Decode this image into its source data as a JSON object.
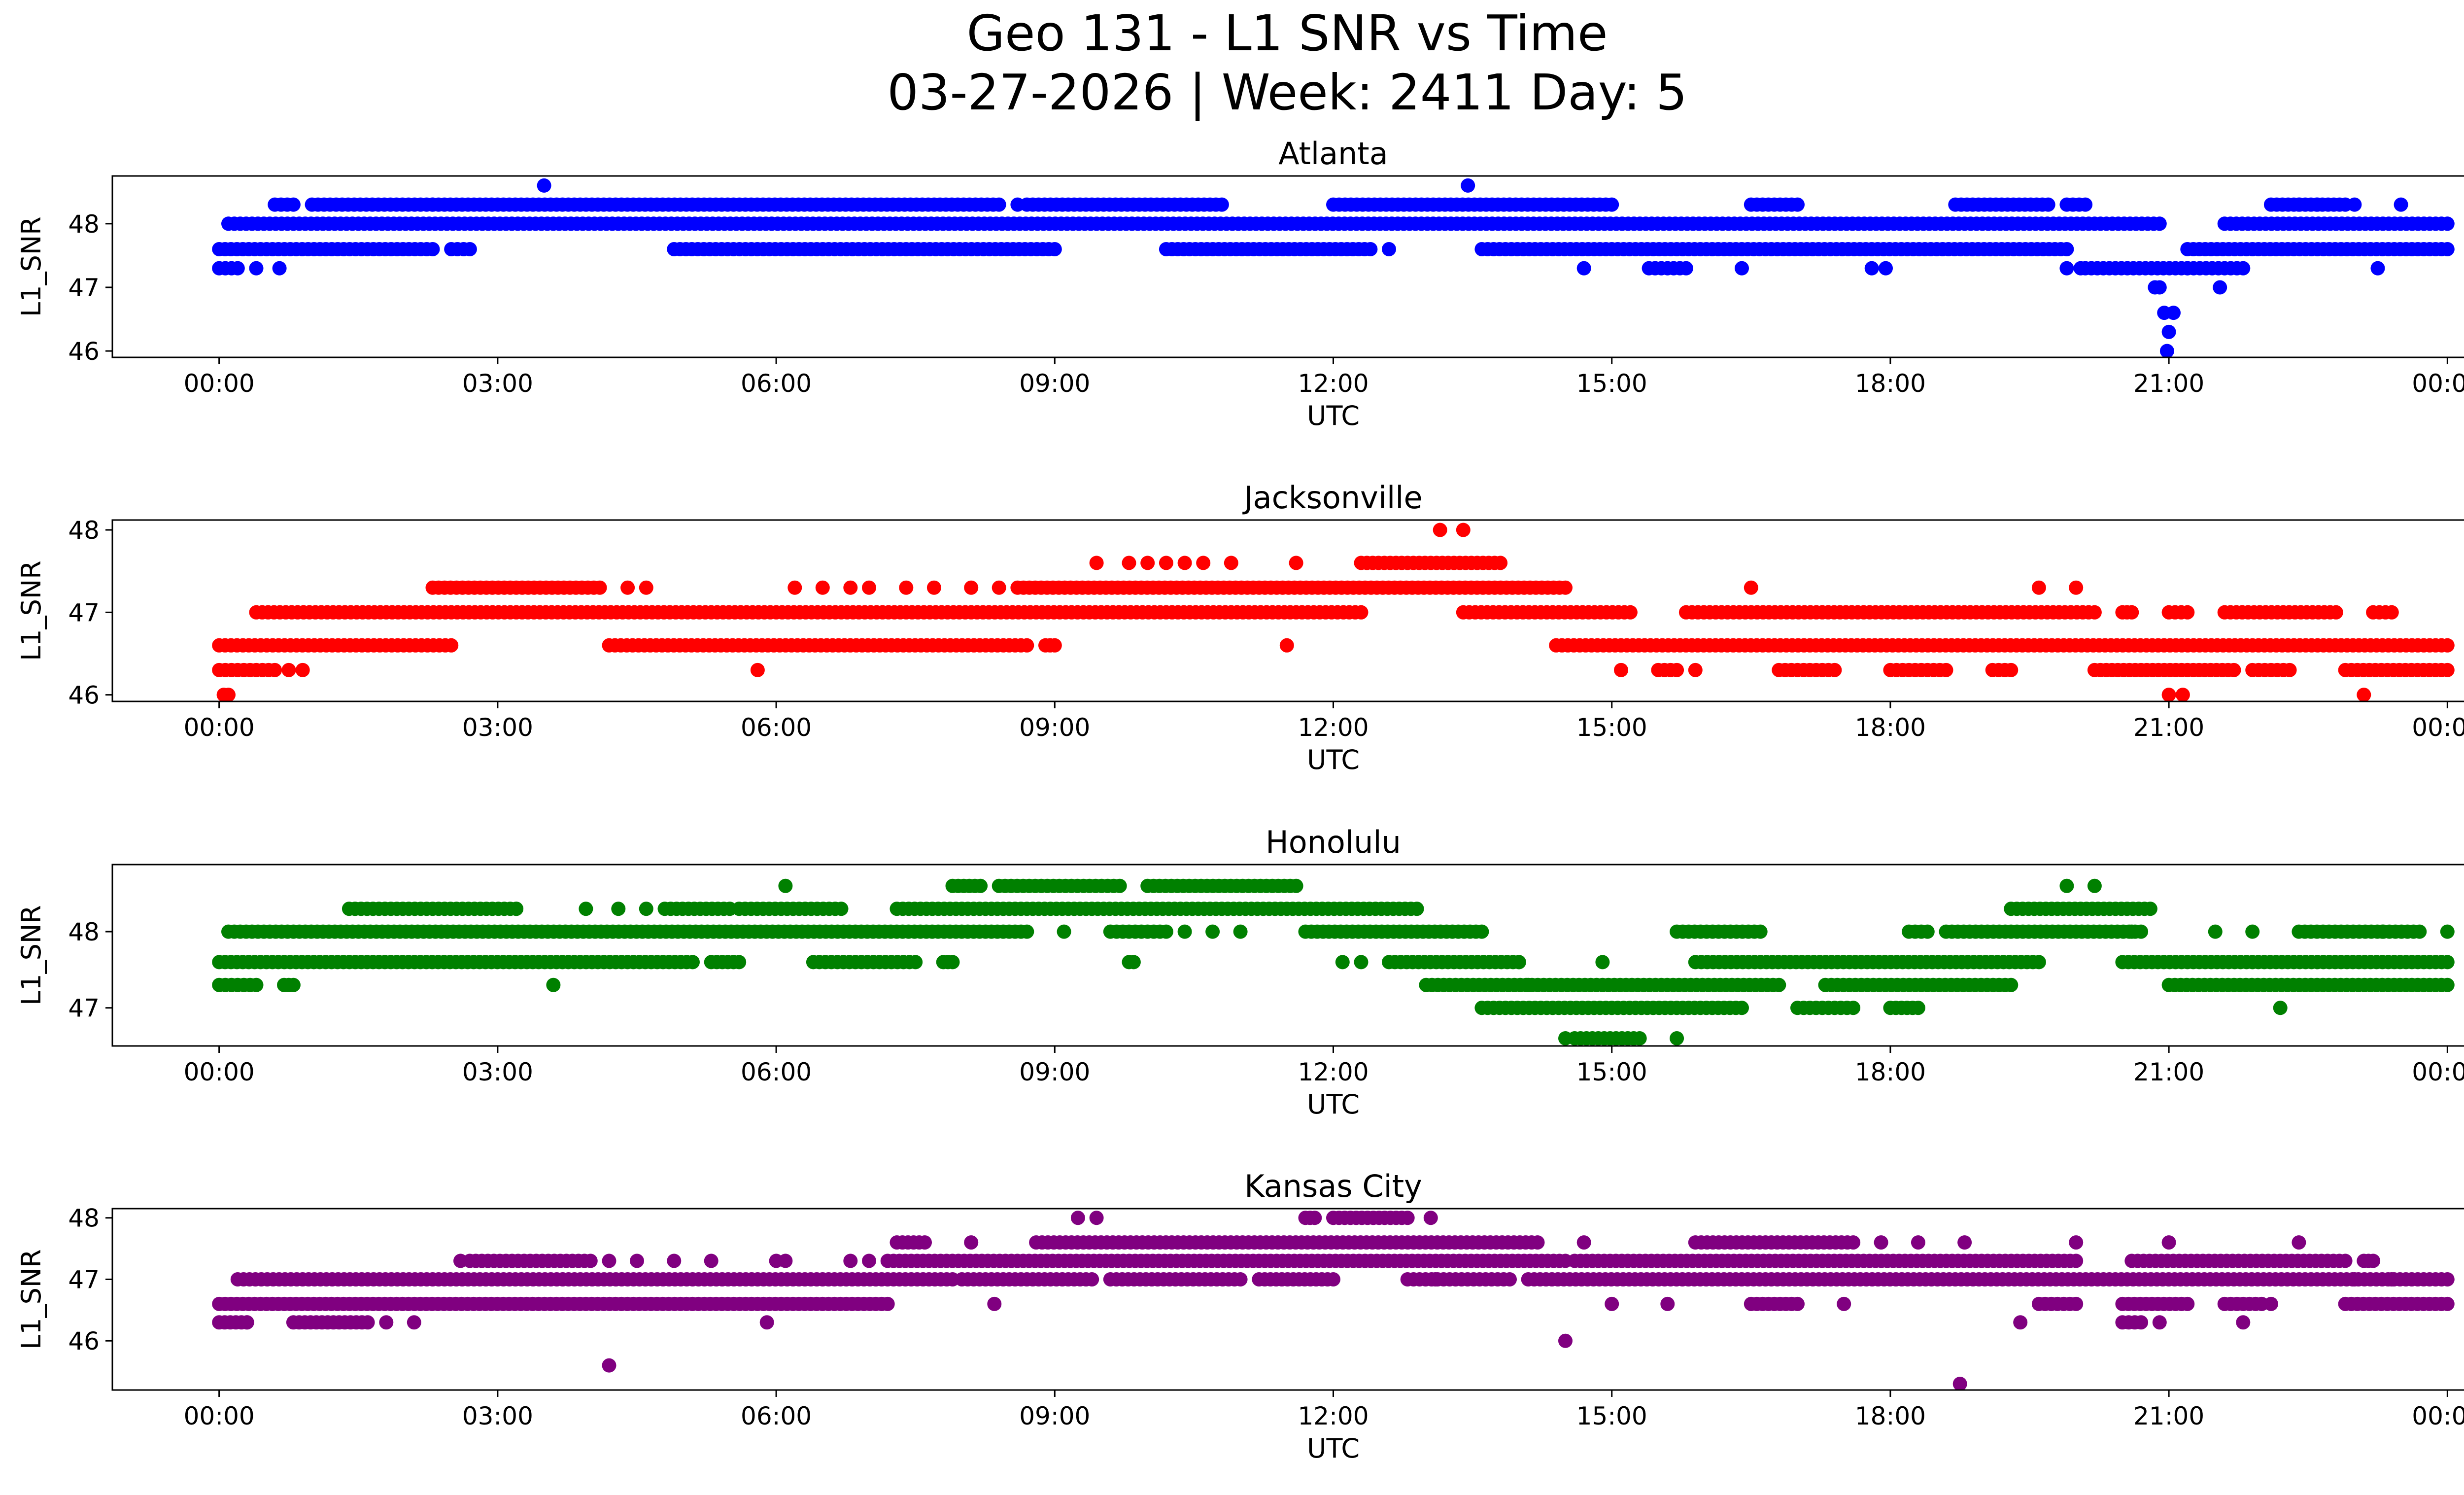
{
  "chart_data": {
    "type": "scatter",
    "title": "Geo 131 - L1 SNR vs Time",
    "subtitle": "03-27-2026 | Week: 2411 Day: 5",
    "xlabel": "UTC",
    "ylabel": "L1_SNR",
    "x_tick_labels": [
      "00:00",
      "03:00",
      "06:00",
      "09:00",
      "12:00",
      "15:00",
      "18:00",
      "21:00",
      "00:00"
    ],
    "x_ticks_hours": [
      0,
      3,
      6,
      9,
      12,
      15,
      18,
      21,
      24
    ],
    "xlim_hours": [
      -1.15,
      25.15
    ],
    "subplots": [
      {
        "name": "Atlanta",
        "color": "#0000ff",
        "ylim": [
          45.9,
          48.75
        ],
        "yticks": [
          46,
          47,
          48
        ],
        "levels": [
          {
            "y": 47.6,
            "segments": [
              [
                0,
                2.3
              ],
              [
                2.5,
                2.7
              ],
              [
                4.9,
                9.0
              ],
              [
                10.2,
                12.4
              ],
              [
                13.6,
                19.9
              ],
              [
                21.2,
                24
              ]
            ]
          },
          {
            "y": 48.0,
            "segments": [
              [
                0.1,
                20.9
              ],
              [
                21.6,
                24
              ]
            ]
          },
          {
            "y": 48.3,
            "segments": [
              [
                0.6,
                0.8
              ],
              [
                1.0,
                2.3
              ],
              [
                2.3,
                8.4
              ],
              [
                8.7,
                10.8
              ],
              [
                12.0,
                13.9
              ],
              [
                13.9,
                15.0
              ],
              [
                16.5,
                17.0
              ],
              [
                18.7,
                19.7
              ],
              [
                19.9,
                20.1
              ],
              [
                22.1,
                22.9
              ]
            ]
          },
          {
            "y": 47.3,
            "segments": [
              [
                0,
                0.2
              ],
              [
                15.4,
                15.8
              ],
              [
                20.1,
                21.2
              ],
              [
                21.2,
                21.8
              ]
            ]
          }
        ],
        "points": [
          [
            0.4,
            47.3
          ],
          [
            0.65,
            47.3
          ],
          [
            3.5,
            48.6
          ],
          [
            8.6,
            48.3
          ],
          [
            12.6,
            47.6
          ],
          [
            13.45,
            48.6
          ],
          [
            14.7,
            47.3
          ],
          [
            16.4,
            47.3
          ],
          [
            17.8,
            47.3
          ],
          [
            17.95,
            47.3
          ],
          [
            19.9,
            47.3
          ],
          [
            20.05,
            47.3
          ],
          [
            21.55,
            47.0
          ],
          [
            22.4,
            48.3
          ],
          [
            22.6,
            48.3
          ],
          [
            23.0,
            48.3
          ],
          [
            23.25,
            47.3
          ],
          [
            23.5,
            48.3
          ],
          [
            20.9,
            47.0
          ],
          [
            20.95,
            46.6
          ],
          [
            21.0,
            46.3
          ],
          [
            20.98,
            46.0
          ],
          [
            21.05,
            46.6
          ],
          [
            20.85,
            47.0
          ]
        ]
      },
      {
        "name": "Jacksonville",
        "color": "#ff0000",
        "ylim": [
          45.92,
          48.12
        ],
        "yticks": [
          46,
          47,
          48
        ],
        "levels": [
          {
            "y": 46.3,
            "segments": [
              [
                0,
                0.6
              ],
              [
                15.5,
                15.7
              ],
              [
                16.8,
                17.4
              ],
              [
                18.0,
                18.6
              ],
              [
                19.1,
                19.3
              ],
              [
                20.2,
                21.7
              ],
              [
                21.9,
                22.3
              ],
              [
                22.9,
                24
              ]
            ]
          },
          {
            "y": 46.6,
            "segments": [
              [
                0,
                2.5
              ],
              [
                4.2,
                8.7
              ],
              [
                8.9,
                9.0
              ],
              [
                14.4,
                24
              ]
            ]
          },
          {
            "y": 47.0,
            "segments": [
              [
                0.4,
                12.3
              ],
              [
                13.4,
                15.2
              ],
              [
                15.8,
                20.2
              ],
              [
                20.5,
                20.6
              ],
              [
                21.0,
                21.2
              ],
              [
                21.6,
                22.8
              ],
              [
                23.2,
                23.4
              ]
            ]
          },
          {
            "y": 47.3,
            "segments": [
              [
                2.3,
                4.1
              ],
              [
                8.6,
                14.5
              ]
            ]
          },
          {
            "y": 47.6,
            "segments": [
              [
                12.3,
                13.8
              ]
            ]
          }
        ],
        "points": [
          [
            0.05,
            46.0
          ],
          [
            0.1,
            46.0
          ],
          [
            0.75,
            46.3
          ],
          [
            0.9,
            46.3
          ],
          [
            4.4,
            47.3
          ],
          [
            4.6,
            47.3
          ],
          [
            5.8,
            46.3
          ],
          [
            6.2,
            47.3
          ],
          [
            6.5,
            47.3
          ],
          [
            6.8,
            47.3
          ],
          [
            7.0,
            47.3
          ],
          [
            7.4,
            47.3
          ],
          [
            7.7,
            47.3
          ],
          [
            8.1,
            47.3
          ],
          [
            8.4,
            47.3
          ],
          [
            9.45,
            47.6
          ],
          [
            9.8,
            47.6
          ],
          [
            10.0,
            47.6
          ],
          [
            10.2,
            47.6
          ],
          [
            10.4,
            47.6
          ],
          [
            10.6,
            47.6
          ],
          [
            10.9,
            47.6
          ],
          [
            11.5,
            46.6
          ],
          [
            11.6,
            47.6
          ],
          [
            13.15,
            48.0
          ],
          [
            13.4,
            48.0
          ],
          [
            15.1,
            46.3
          ],
          [
            15.9,
            46.3
          ],
          [
            16.5,
            47.3
          ],
          [
            19.6,
            47.3
          ],
          [
            20.0,
            47.3
          ],
          [
            21.0,
            46.0
          ],
          [
            21.15,
            46.0
          ],
          [
            23.1,
            46.0
          ]
        ]
      },
      {
        "name": "Honolulu",
        "color": "#008000",
        "ylim": [
          46.5,
          48.88
        ],
        "yticks": [
          47,
          48
        ],
        "levels": [
          {
            "y": 47.3,
            "segments": [
              [
                0,
                0.4
              ],
              [
                0.7,
                0.8
              ],
              [
                13.0,
                16.8
              ],
              [
                17.3,
                19.3
              ],
              [
                21.0,
                24
              ]
            ]
          },
          {
            "y": 47.6,
            "segments": [
              [
                0,
                5.1
              ],
              [
                5.3,
                5.6
              ],
              [
                6.4,
                7.5
              ],
              [
                7.8,
                7.9
              ],
              [
                12.6,
                14.0
              ],
              [
                15.9,
                19.6
              ],
              [
                20.5,
                24
              ]
            ]
          },
          {
            "y": 48.0,
            "segments": [
              [
                0.1,
                8.7
              ],
              [
                9.6,
                10.2
              ],
              [
                11.7,
                13.6
              ],
              [
                15.7,
                16.6
              ],
              [
                18.2,
                18.4
              ],
              [
                18.6,
                20.7
              ],
              [
                22.4,
                23.7
              ]
            ]
          },
          {
            "y": 48.3,
            "segments": [
              [
                1.4,
                3.2
              ],
              [
                4.8,
                5.5
              ],
              [
                5.6,
                6.7
              ],
              [
                7.3,
                12.9
              ],
              [
                19.3,
                20.8
              ]
            ]
          },
          {
            "y": 48.6,
            "segments": [
              [
                7.9,
                8.2
              ],
              [
                8.4,
                9.7
              ],
              [
                10.0,
                11.6
              ]
            ]
          },
          {
            "y": 47.0,
            "segments": [
              [
                13.6,
                16.4
              ],
              [
                17.0,
                17.6
              ],
              [
                18.0,
                18.3
              ]
            ]
          },
          {
            "y": 46.6,
            "segments": [
              [
                14.6,
                15.3
              ]
            ]
          }
        ],
        "points": [
          [
            3.2,
            48.3
          ],
          [
            3.6,
            47.3
          ],
          [
            3.95,
            48.3
          ],
          [
            4.3,
            48.3
          ],
          [
            4.6,
            48.3
          ],
          [
            6.1,
            48.6
          ],
          [
            9.1,
            48.0
          ],
          [
            9.8,
            47.6
          ],
          [
            9.85,
            47.6
          ],
          [
            10.4,
            48.0
          ],
          [
            10.7,
            48.0
          ],
          [
            11.0,
            48.0
          ],
          [
            12.1,
            47.6
          ],
          [
            12.3,
            47.6
          ],
          [
            14.0,
            47.6
          ],
          [
            14.1,
            47.3
          ],
          [
            14.5,
            46.6
          ],
          [
            14.9,
            47.6
          ],
          [
            15.7,
            46.6
          ],
          [
            22.2,
            47.0
          ],
          [
            23.3,
            48.0
          ],
          [
            24.0,
            48.0
          ],
          [
            19.9,
            48.6
          ],
          [
            20.2,
            48.6
          ],
          [
            20.6,
            48.0
          ],
          [
            21.5,
            48.0
          ],
          [
            21.9,
            48.0
          ]
        ]
      },
      {
        "name": "Kansas City",
        "color": "#800080",
        "ylim": [
          45.2,
          48.15
        ],
        "yticks": [
          46,
          47,
          48
        ],
        "levels": [
          {
            "y": 46.3,
            "segments": [
              [
                0,
                0.3
              ],
              [
                0.8,
                1.6
              ],
              [
                20.5,
                20.7
              ]
            ]
          },
          {
            "y": 46.6,
            "segments": [
              [
                0,
                7.2
              ],
              [
                16.5,
                17.0
              ],
              [
                19.6,
                20.0
              ],
              [
                20.5,
                21.2
              ],
              [
                21.6,
                22.0
              ],
              [
                22.9,
                24
              ]
            ]
          },
          {
            "y": 47.0,
            "segments": [
              [
                0.2,
                7.9
              ],
              [
                8.0,
                9.4
              ],
              [
                9.6,
                11.0
              ],
              [
                11.2,
                12.0
              ],
              [
                12.8,
                13.9
              ],
              [
                14.1,
                24
              ]
            ]
          },
          {
            "y": 47.3,
            "segments": [
              [
                2.7,
                4.0
              ],
              [
                7.2,
                14.5
              ],
              [
                14.6,
                20.0
              ],
              [
                20.6,
                22.9
              ],
              [
                23.1,
                23.2
              ]
            ]
          },
          {
            "y": 47.6,
            "segments": [
              [
                7.3,
                7.6
              ],
              [
                8.8,
                14.2
              ],
              [
                15.9,
                17.6
              ]
            ]
          },
          {
            "y": 48.0,
            "segments": [
              [
                11.7,
                11.8
              ],
              [
                12.0,
                12.8
              ]
            ]
          }
        ],
        "points": [
          [
            0.3,
            46.3
          ],
          [
            1.8,
            46.3
          ],
          [
            2.1,
            46.3
          ],
          [
            2.6,
            47.3
          ],
          [
            4.2,
            47.3
          ],
          [
            4.5,
            47.3
          ],
          [
            4.9,
            47.3
          ],
          [
            5.3,
            47.3
          ],
          [
            5.9,
            46.3
          ],
          [
            6.0,
            47.3
          ],
          [
            6.1,
            47.3
          ],
          [
            6.8,
            47.3
          ],
          [
            7.0,
            47.3
          ],
          [
            4.2,
            45.6
          ],
          [
            8.1,
            47.6
          ],
          [
            8.35,
            46.6
          ],
          [
            9.25,
            48.0
          ],
          [
            9.45,
            48.0
          ],
          [
            13.05,
            48.0
          ],
          [
            13.1,
            47.0
          ],
          [
            14.5,
            46.0
          ],
          [
            14.7,
            47.6
          ],
          [
            15.0,
            46.6
          ],
          [
            15.6,
            46.6
          ],
          [
            17.5,
            46.6
          ],
          [
            17.9,
            47.6
          ],
          [
            18.3,
            47.6
          ],
          [
            18.8,
            47.6
          ],
          [
            18.75,
            45.3
          ],
          [
            19.4,
            46.3
          ],
          [
            20.0,
            47.6
          ],
          [
            20.9,
            46.3
          ],
          [
            21.0,
            47.6
          ],
          [
            21.8,
            46.3
          ],
          [
            22.1,
            46.6
          ],
          [
            22.4,
            47.6
          ],
          [
            23.0,
            47.0
          ],
          [
            23.4,
            47.0
          ]
        ]
      }
    ]
  }
}
